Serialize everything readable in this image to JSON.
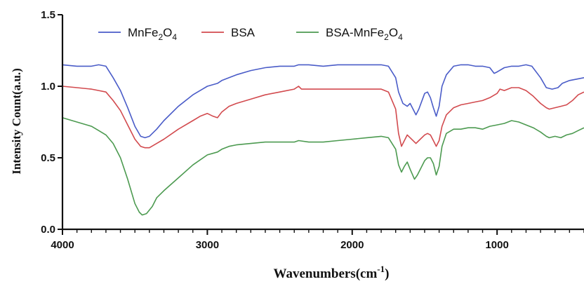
{
  "chart_data": {
    "type": "line",
    "title": "",
    "xlabel": "Wavenumbers(cm",
    "xlabel_sup": "-1",
    "xlabel_close": ")",
    "ylabel": "Intensity Count(a.u.)",
    "xlim": [
      4000,
      400
    ],
    "ylim": [
      0,
      1.5
    ],
    "x_reversed": true,
    "xticks": [
      4000,
      3000,
      2000,
      1000
    ],
    "xtick_labels": [
      "4000",
      "3000",
      "2000",
      "1000"
    ],
    "yticks": [
      0,
      0.5,
      1.0,
      1.5
    ],
    "ytick_labels": [
      "0.0",
      "0.5",
      "1.0",
      "1.5"
    ],
    "grid": false,
    "legend_placement": "top",
    "series": [
      {
        "name": "MnFe2O4",
        "name_parts": [
          "MnFe",
          "2",
          "O",
          "4"
        ],
        "color": "#4a5cc8",
        "points": [
          [
            4000,
            1.15
          ],
          [
            3900,
            1.14
          ],
          [
            3800,
            1.14
          ],
          [
            3750,
            1.15
          ],
          [
            3700,
            1.14
          ],
          [
            3650,
            1.06
          ],
          [
            3600,
            0.97
          ],
          [
            3550,
            0.85
          ],
          [
            3500,
            0.72
          ],
          [
            3460,
            0.65
          ],
          [
            3430,
            0.64
          ],
          [
            3400,
            0.65
          ],
          [
            3350,
            0.7
          ],
          [
            3300,
            0.76
          ],
          [
            3200,
            0.86
          ],
          [
            3100,
            0.94
          ],
          [
            3000,
            1.0
          ],
          [
            2930,
            1.02
          ],
          [
            2900,
            1.04
          ],
          [
            2850,
            1.06
          ],
          [
            2800,
            1.08
          ],
          [
            2700,
            1.11
          ],
          [
            2600,
            1.13
          ],
          [
            2500,
            1.14
          ],
          [
            2400,
            1.14
          ],
          [
            2370,
            1.15
          ],
          [
            2300,
            1.15
          ],
          [
            2200,
            1.14
          ],
          [
            2100,
            1.15
          ],
          [
            2000,
            1.15
          ],
          [
            1900,
            1.15
          ],
          [
            1800,
            1.15
          ],
          [
            1750,
            1.14
          ],
          [
            1700,
            1.06
          ],
          [
            1680,
            0.96
          ],
          [
            1650,
            0.88
          ],
          [
            1620,
            0.86
          ],
          [
            1600,
            0.88
          ],
          [
            1560,
            0.8
          ],
          [
            1540,
            0.84
          ],
          [
            1500,
            0.95
          ],
          [
            1480,
            0.96
          ],
          [
            1460,
            0.92
          ],
          [
            1440,
            0.85
          ],
          [
            1420,
            0.79
          ],
          [
            1400,
            0.86
          ],
          [
            1380,
            1.0
          ],
          [
            1350,
            1.08
          ],
          [
            1300,
            1.14
          ],
          [
            1250,
            1.15
          ],
          [
            1200,
            1.15
          ],
          [
            1150,
            1.14
          ],
          [
            1100,
            1.14
          ],
          [
            1050,
            1.13
          ],
          [
            1020,
            1.09
          ],
          [
            1000,
            1.1
          ],
          [
            950,
            1.13
          ],
          [
            900,
            1.14
          ],
          [
            850,
            1.14
          ],
          [
            800,
            1.15
          ],
          [
            760,
            1.14
          ],
          [
            700,
            1.06
          ],
          [
            660,
            0.99
          ],
          [
            620,
            0.98
          ],
          [
            580,
            0.99
          ],
          [
            550,
            1.02
          ],
          [
            500,
            1.04
          ],
          [
            450,
            1.05
          ],
          [
            400,
            1.06
          ]
        ]
      },
      {
        "name": "BSA",
        "name_parts": [
          "BSA"
        ],
        "color": "#d24a4e",
        "points": [
          [
            4000,
            1.0
          ],
          [
            3900,
            0.99
          ],
          [
            3800,
            0.98
          ],
          [
            3750,
            0.97
          ],
          [
            3700,
            0.96
          ],
          [
            3650,
            0.9
          ],
          [
            3600,
            0.83
          ],
          [
            3550,
            0.73
          ],
          [
            3500,
            0.63
          ],
          [
            3460,
            0.58
          ],
          [
            3430,
            0.57
          ],
          [
            3400,
            0.57
          ],
          [
            3350,
            0.6
          ],
          [
            3300,
            0.63
          ],
          [
            3200,
            0.7
          ],
          [
            3100,
            0.76
          ],
          [
            3050,
            0.79
          ],
          [
            3000,
            0.81
          ],
          [
            2960,
            0.79
          ],
          [
            2930,
            0.78
          ],
          [
            2900,
            0.82
          ],
          [
            2850,
            0.86
          ],
          [
            2800,
            0.88
          ],
          [
            2700,
            0.91
          ],
          [
            2600,
            0.94
          ],
          [
            2500,
            0.96
          ],
          [
            2400,
            0.98
          ],
          [
            2370,
            1.0
          ],
          [
            2350,
            0.98
          ],
          [
            2300,
            0.98
          ],
          [
            2200,
            0.98
          ],
          [
            2100,
            0.98
          ],
          [
            2000,
            0.98
          ],
          [
            1900,
            0.98
          ],
          [
            1800,
            0.98
          ],
          [
            1750,
            0.96
          ],
          [
            1700,
            0.84
          ],
          [
            1680,
            0.67
          ],
          [
            1660,
            0.58
          ],
          [
            1640,
            0.62
          ],
          [
            1620,
            0.66
          ],
          [
            1600,
            0.64
          ],
          [
            1560,
            0.6
          ],
          [
            1540,
            0.62
          ],
          [
            1500,
            0.66
          ],
          [
            1480,
            0.67
          ],
          [
            1460,
            0.66
          ],
          [
            1440,
            0.62
          ],
          [
            1420,
            0.58
          ],
          [
            1400,
            0.62
          ],
          [
            1380,
            0.72
          ],
          [
            1350,
            0.8
          ],
          [
            1300,
            0.85
          ],
          [
            1250,
            0.87
          ],
          [
            1200,
            0.88
          ],
          [
            1150,
            0.89
          ],
          [
            1100,
            0.9
          ],
          [
            1050,
            0.92
          ],
          [
            1000,
            0.95
          ],
          [
            980,
            0.98
          ],
          [
            950,
            0.97
          ],
          [
            900,
            0.99
          ],
          [
            850,
            0.99
          ],
          [
            800,
            0.97
          ],
          [
            750,
            0.93
          ],
          [
            700,
            0.88
          ],
          [
            660,
            0.85
          ],
          [
            640,
            0.84
          ],
          [
            600,
            0.85
          ],
          [
            560,
            0.86
          ],
          [
            520,
            0.87
          ],
          [
            480,
            0.9
          ],
          [
            440,
            0.94
          ],
          [
            400,
            0.96
          ]
        ]
      },
      {
        "name": "BSA-MnFe2O4",
        "name_parts": [
          "BSA-MnFe",
          "2",
          "O",
          "4"
        ],
        "color": "#4c9a50",
        "points": [
          [
            4000,
            0.78
          ],
          [
            3900,
            0.75
          ],
          [
            3800,
            0.72
          ],
          [
            3750,
            0.69
          ],
          [
            3700,
            0.66
          ],
          [
            3650,
            0.6
          ],
          [
            3600,
            0.5
          ],
          [
            3550,
            0.35
          ],
          [
            3500,
            0.18
          ],
          [
            3470,
            0.12
          ],
          [
            3450,
            0.1
          ],
          [
            3420,
            0.11
          ],
          [
            3380,
            0.16
          ],
          [
            3350,
            0.22
          ],
          [
            3300,
            0.27
          ],
          [
            3200,
            0.36
          ],
          [
            3100,
            0.45
          ],
          [
            3000,
            0.52
          ],
          [
            2930,
            0.54
          ],
          [
            2900,
            0.56
          ],
          [
            2850,
            0.58
          ],
          [
            2800,
            0.59
          ],
          [
            2700,
            0.6
          ],
          [
            2600,
            0.61
          ],
          [
            2500,
            0.61
          ],
          [
            2400,
            0.61
          ],
          [
            2370,
            0.62
          ],
          [
            2300,
            0.61
          ],
          [
            2200,
            0.61
          ],
          [
            2100,
            0.62
          ],
          [
            2000,
            0.63
          ],
          [
            1900,
            0.64
          ],
          [
            1800,
            0.65
          ],
          [
            1750,
            0.64
          ],
          [
            1700,
            0.56
          ],
          [
            1680,
            0.45
          ],
          [
            1660,
            0.4
          ],
          [
            1640,
            0.44
          ],
          [
            1620,
            0.47
          ],
          [
            1600,
            0.42
          ],
          [
            1570,
            0.35
          ],
          [
            1550,
            0.38
          ],
          [
            1500,
            0.48
          ],
          [
            1480,
            0.5
          ],
          [
            1460,
            0.5
          ],
          [
            1440,
            0.46
          ],
          [
            1420,
            0.38
          ],
          [
            1400,
            0.44
          ],
          [
            1380,
            0.58
          ],
          [
            1350,
            0.67
          ],
          [
            1300,
            0.7
          ],
          [
            1250,
            0.7
          ],
          [
            1200,
            0.71
          ],
          [
            1150,
            0.71
          ],
          [
            1100,
            0.7
          ],
          [
            1050,
            0.72
          ],
          [
            1000,
            0.73
          ],
          [
            950,
            0.74
          ],
          [
            900,
            0.76
          ],
          [
            850,
            0.75
          ],
          [
            800,
            0.73
          ],
          [
            750,
            0.71
          ],
          [
            700,
            0.68
          ],
          [
            660,
            0.65
          ],
          [
            640,
            0.64
          ],
          [
            600,
            0.65
          ],
          [
            560,
            0.64
          ],
          [
            520,
            0.66
          ],
          [
            480,
            0.67
          ],
          [
            440,
            0.69
          ],
          [
            400,
            0.71
          ]
        ]
      }
    ]
  }
}
